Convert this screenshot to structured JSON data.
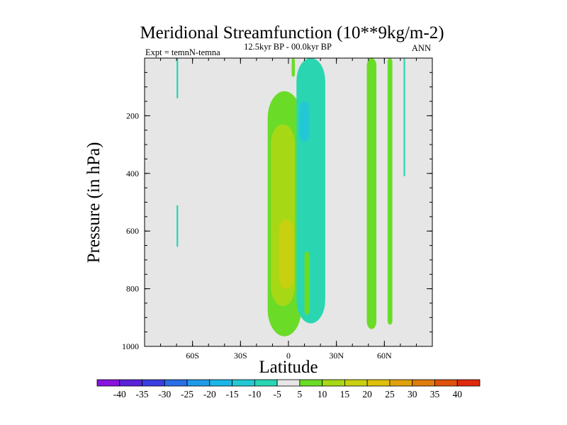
{
  "chart_data": {
    "type": "heatmap",
    "title": "Meridional Streamfunction (10**9kg/m-2)",
    "subtitle": "12.5kyr BP - 00.0kyr BP",
    "left_label": "Expt = temnN-temna",
    "right_label": "ANN",
    "xlabel": "Latitude",
    "ylabel": "Pressure (in hPa)",
    "xlim": [
      -90,
      90
    ],
    "ylim": [
      1000,
      0
    ],
    "x_ticks": [
      {
        "value": -60,
        "label": "60S"
      },
      {
        "value": -30,
        "label": "30S"
      },
      {
        "value": 0,
        "label": "0"
      },
      {
        "value": 30,
        "label": "30N"
      },
      {
        "value": 60,
        "label": "60N"
      }
    ],
    "y_ticks": [
      {
        "value": 200,
        "label": "200"
      },
      {
        "value": 400,
        "label": "400"
      },
      {
        "value": 600,
        "label": "600"
      },
      {
        "value": 800,
        "label": "800"
      },
      {
        "value": 1000,
        "label": "1000"
      }
    ],
    "background_color": "#e6e6e6",
    "colorbar": {
      "levels": [
        "-40",
        "-35",
        "-30",
        "-25",
        "-20",
        "-15",
        "-10",
        "-5",
        "5",
        "10",
        "15",
        "20",
        "25",
        "30",
        "35",
        "40"
      ],
      "colors": [
        "#8a12e0",
        "#5a23d8",
        "#3a3ee0",
        "#2a6ee6",
        "#1f9ae8",
        "#1cb6e6",
        "#22c9d4",
        "#2ad6b2",
        "#e6e6e6",
        "#6adc28",
        "#a6d816",
        "#c8d010",
        "#dcc00c",
        "#e0a20c",
        "#e07c0c",
        "#e0520c",
        "#e02a0c"
      ]
    },
    "regions": [
      {
        "name": "positive-cell-core",
        "level": 5,
        "lat_range": [
          -13,
          8
        ],
        "pressure_range": [
          115,
          965
        ]
      },
      {
        "name": "positive-cell-inner",
        "level": 10,
        "lat_range": [
          -11,
          4
        ],
        "pressure_range": [
          230,
          860
        ]
      },
      {
        "name": "positive-cell-max",
        "level": 15,
        "lat_range": [
          -6,
          3
        ],
        "pressure_range": [
          560,
          800
        ]
      },
      {
        "name": "negative-nh-tropics",
        "level": -5,
        "lat_range": [
          5,
          23
        ],
        "pressure_range": [
          0,
          920
        ]
      },
      {
        "name": "negative-nh-tropics-core",
        "level": -10,
        "lat_range": [
          7,
          13
        ],
        "pressure_range": [
          150,
          290
        ]
      },
      {
        "name": "positive-strip-12N",
        "level": 5,
        "lat_range": [
          10,
          13
        ],
        "pressure_range": [
          670,
          890
        ]
      },
      {
        "name": "positive-strip-50N",
        "level": 5,
        "lat_range": [
          49,
          55
        ],
        "pressure_range": [
          0,
          940
        ]
      },
      {
        "name": "positive-strip-63N",
        "level": 5,
        "lat_range": [
          62,
          65
        ],
        "pressure_range": [
          0,
          925
        ]
      },
      {
        "name": "negative-strip-73N",
        "level": -5,
        "lat_range": [
          72,
          73
        ],
        "pressure_range": [
          0,
          410
        ]
      },
      {
        "name": "negative-strip-71S-upper",
        "level": -5,
        "lat_range": [
          -70,
          -69
        ],
        "pressure_range": [
          0,
          140
        ]
      },
      {
        "name": "negative-strip-71S-lower",
        "level": -5,
        "lat_range": [
          -70,
          -69
        ],
        "pressure_range": [
          510,
          655
        ]
      },
      {
        "name": "positive-wisp-3N",
        "level": 5,
        "lat_range": [
          2,
          4
        ],
        "pressure_range": [
          0,
          65
        ]
      }
    ]
  }
}
